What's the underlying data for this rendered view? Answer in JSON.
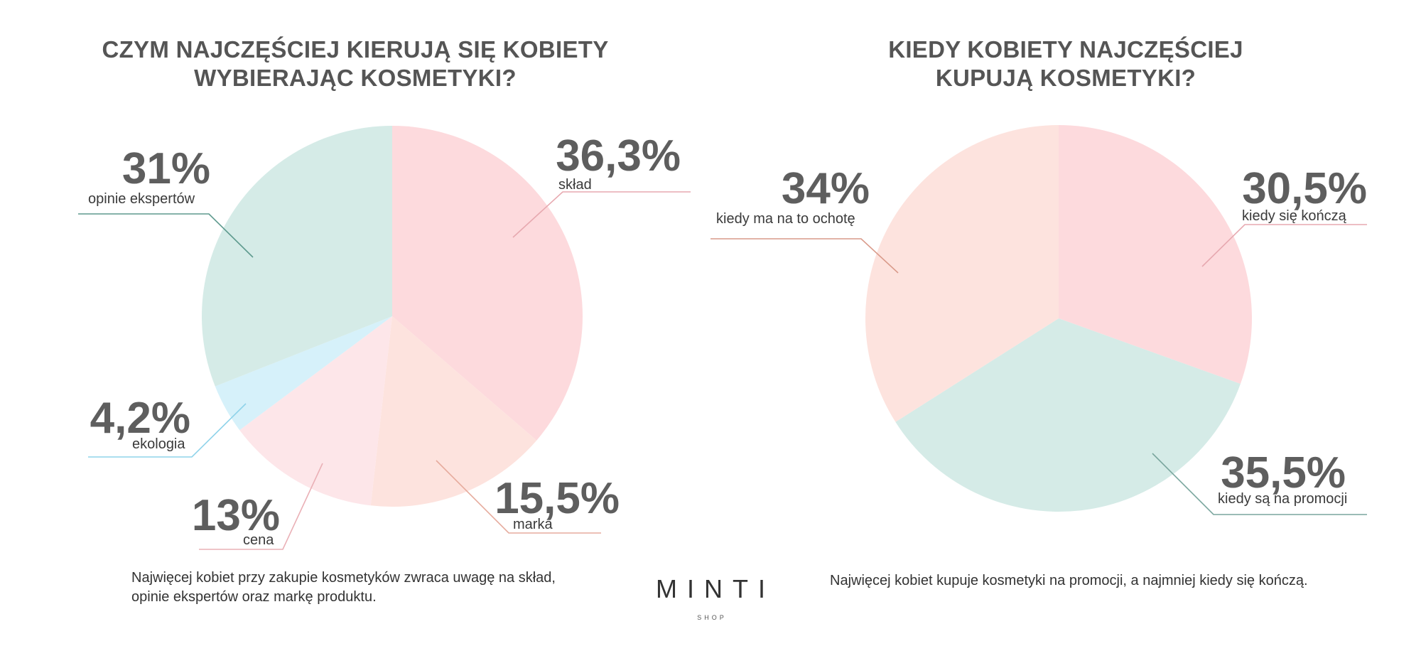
{
  "charts": [
    {
      "title_lines": [
        "CZYM NAJCZĘŚCIEJ KIERUJĄ SIĘ KOBIETY",
        "WYBIERAJĄC KOSMETYKI?"
      ],
      "caption_lines": [
        "Najwięcej kobiet przy zakupie kosmetyków zwraca uwagę na skład,",
        "opinie ekspertów oraz markę produktu."
      ]
    },
    {
      "title_lines": [
        "KIEDY KOBIETY NAJCZĘŚCIEJ",
        "KUPUJĄ KOSMETYKI?"
      ],
      "caption_lines": [
        "Najwięcej kobiet kupuje kosmetyki na promocji, a najmniej kiedy się kończą."
      ]
    }
  ],
  "brand": {
    "name": "MINTI",
    "sub": "SHOP"
  },
  "chart_data": [
    {
      "type": "pie",
      "title": "CZYM NAJCZĘŚCIEJ KIERUJĄ SIĘ KOBIETY WYBIERAJĄC KOSMETYKI?",
      "slices": [
        {
          "label": "skład",
          "value": 36.3,
          "display": "36,3%",
          "color": "#fddadd",
          "line_color": "#e7a9b0"
        },
        {
          "label": "marka",
          "value": 15.5,
          "display": "15,5%",
          "color": "#fde3de",
          "line_color": "#e6ab9d"
        },
        {
          "label": "cena",
          "value": 13,
          "display": "13%",
          "color": "#fde6e9",
          "line_color": "#eab0b6"
        },
        {
          "label": "ekologia",
          "value": 4.2,
          "display": "4,2%",
          "color": "#d6f1fa",
          "line_color": "#8fd3ea"
        },
        {
          "label": "opinie ekspertów",
          "value": 31,
          "display": "31%",
          "color": "#d5ebe7",
          "line_color": "#5e9a8e"
        }
      ]
    },
    {
      "type": "pie",
      "title": "KIEDY KOBIETY NAJCZĘŚCIEJ KUPUJĄ KOSMETYKI?",
      "slices": [
        {
          "label": "kiedy się kończą",
          "value": 30.5,
          "display": "30,5%",
          "color": "#fddadd",
          "line_color": "#e7a9b0"
        },
        {
          "label": "kiedy są na promocji",
          "value": 35.5,
          "display": "35,5%",
          "color": "#d5ebe7",
          "line_color": "#7aa69e"
        },
        {
          "label": "kiedy ma na to ochotę",
          "value": 34,
          "display": "34%",
          "color": "#fde3de",
          "line_color": "#d99a8a"
        }
      ]
    }
  ]
}
